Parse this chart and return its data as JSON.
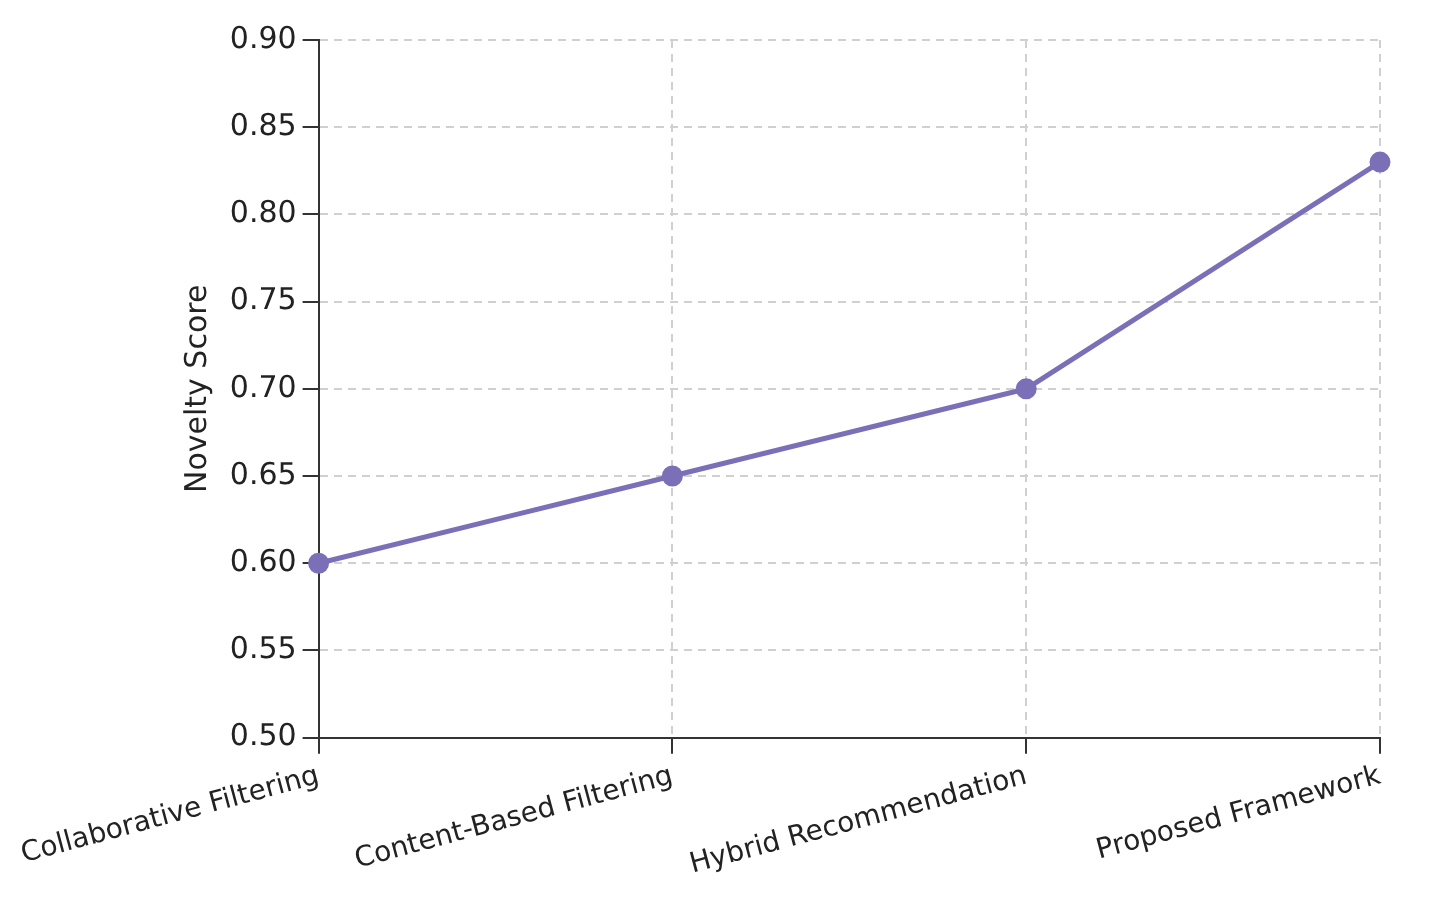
{
  "chart_data": {
    "type": "line",
    "ylabel": "Novelty Score",
    "categories": [
      "Collaborative Filtering",
      "Content-Based Filtering",
      "Hybrid Recommendation",
      "Proposed Framework"
    ],
    "series": [
      {
        "color": "#7b70b8",
        "values": [
          0.6,
          0.65,
          0.7,
          0.83
        ]
      }
    ],
    "ylim": [
      0.5,
      0.9
    ],
    "yticks": [
      {
        "value": 0.5,
        "label": "0.50"
      },
      0.55,
      {
        "value": 0.6,
        "label": "0.60"
      },
      0.65,
      {
        "value": 0.7,
        "label": "0.70"
      },
      0.75,
      {
        "value": 0.8,
        "label": "0.80"
      },
      0.85,
      {
        "value": 0.9,
        "label": "0.90"
      }
    ],
    "grid": true,
    "marker": "circle",
    "line_style": "solid",
    "legend": false
  }
}
